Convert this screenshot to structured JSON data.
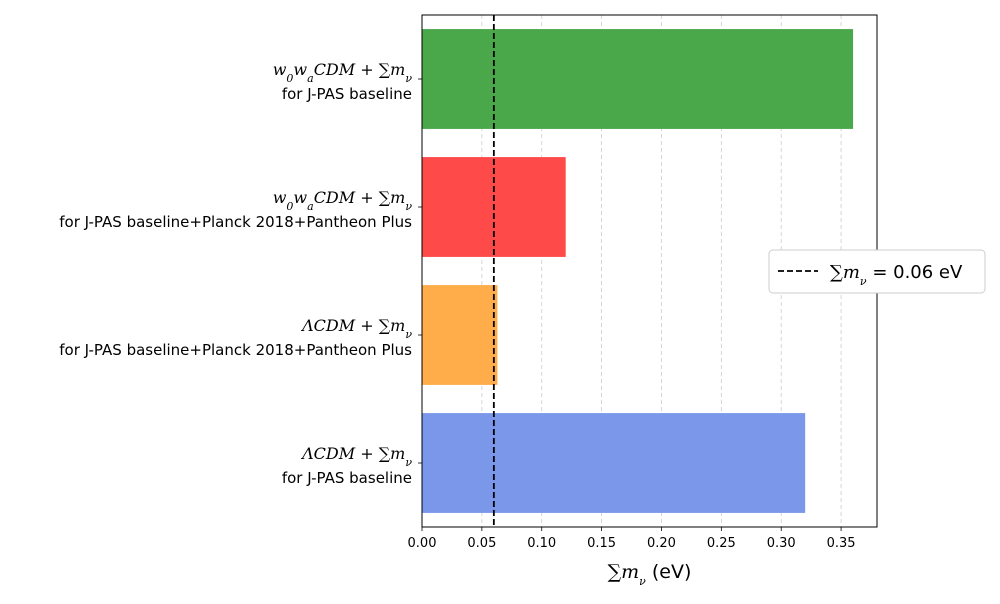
{
  "chart_data": {
    "type": "bar",
    "orientation": "horizontal",
    "title": "",
    "xlabel": "∑m_ν (eV)",
    "xlabel_main": "∑m",
    "xlabel_sub": "ν",
    "xlabel_unit": " (eV)",
    "ylabel": "",
    "xlim": [
      0.0,
      0.38
    ],
    "xticks": [
      0.0,
      0.05,
      0.1,
      0.15,
      0.2,
      0.25,
      0.3,
      0.35
    ],
    "xtick_labels": [
      "0.00",
      "0.05",
      "0.10",
      "0.15",
      "0.20",
      "0.25",
      "0.30",
      "0.35"
    ],
    "grid": "x-dashed",
    "categories": [
      {
        "model": "w0waCDM",
        "math": [
          [
            "w",
            "n"
          ],
          [
            "0",
            "sub"
          ],
          [
            "w",
            "n"
          ],
          [
            "a",
            "sub"
          ],
          [
            "CDM + ∑m",
            "n"
          ],
          [
            "ν",
            "sub"
          ]
        ],
        "subtitle": "for J-PAS baseline",
        "value": 0.36,
        "color": "#4aa84a"
      },
      {
        "model": "w0waCDM",
        "math": [
          [
            "w",
            "n"
          ],
          [
            "0",
            "sub"
          ],
          [
            "w",
            "n"
          ],
          [
            "a",
            "sub"
          ],
          [
            "CDM + ∑m",
            "n"
          ],
          [
            "ν",
            "sub"
          ]
        ],
        "subtitle": "for J-PAS baseline+Planck 2018+Pantheon Plus",
        "value": 0.12,
        "color": "#ff4a4a"
      },
      {
        "model": "ΛCDM",
        "math": [
          [
            "ΛCDM + ∑m",
            "n"
          ],
          [
            "ν",
            "sub"
          ]
        ],
        "subtitle": "for J-PAS baseline+Planck 2018+Pantheon Plus",
        "value": 0.063,
        "color": "#ffad4a"
      },
      {
        "model": "ΛCDM",
        "math": [
          [
            "ΛCDM + ∑m",
            "n"
          ],
          [
            "ν",
            "sub"
          ]
        ],
        "subtitle": "for J-PAS baseline",
        "value": 0.32,
        "color": "#7a97ea"
      }
    ],
    "reference_line": {
      "value": 0.06,
      "style": "dashed",
      "color": "#000000"
    },
    "legend": {
      "placement": "right",
      "entries": [
        {
          "label": "∑m_ν = 0.06 eV",
          "math_main": "∑m",
          "math_sub": "ν",
          "rest": " = 0.06 eV",
          "style": "dashed"
        }
      ]
    }
  }
}
